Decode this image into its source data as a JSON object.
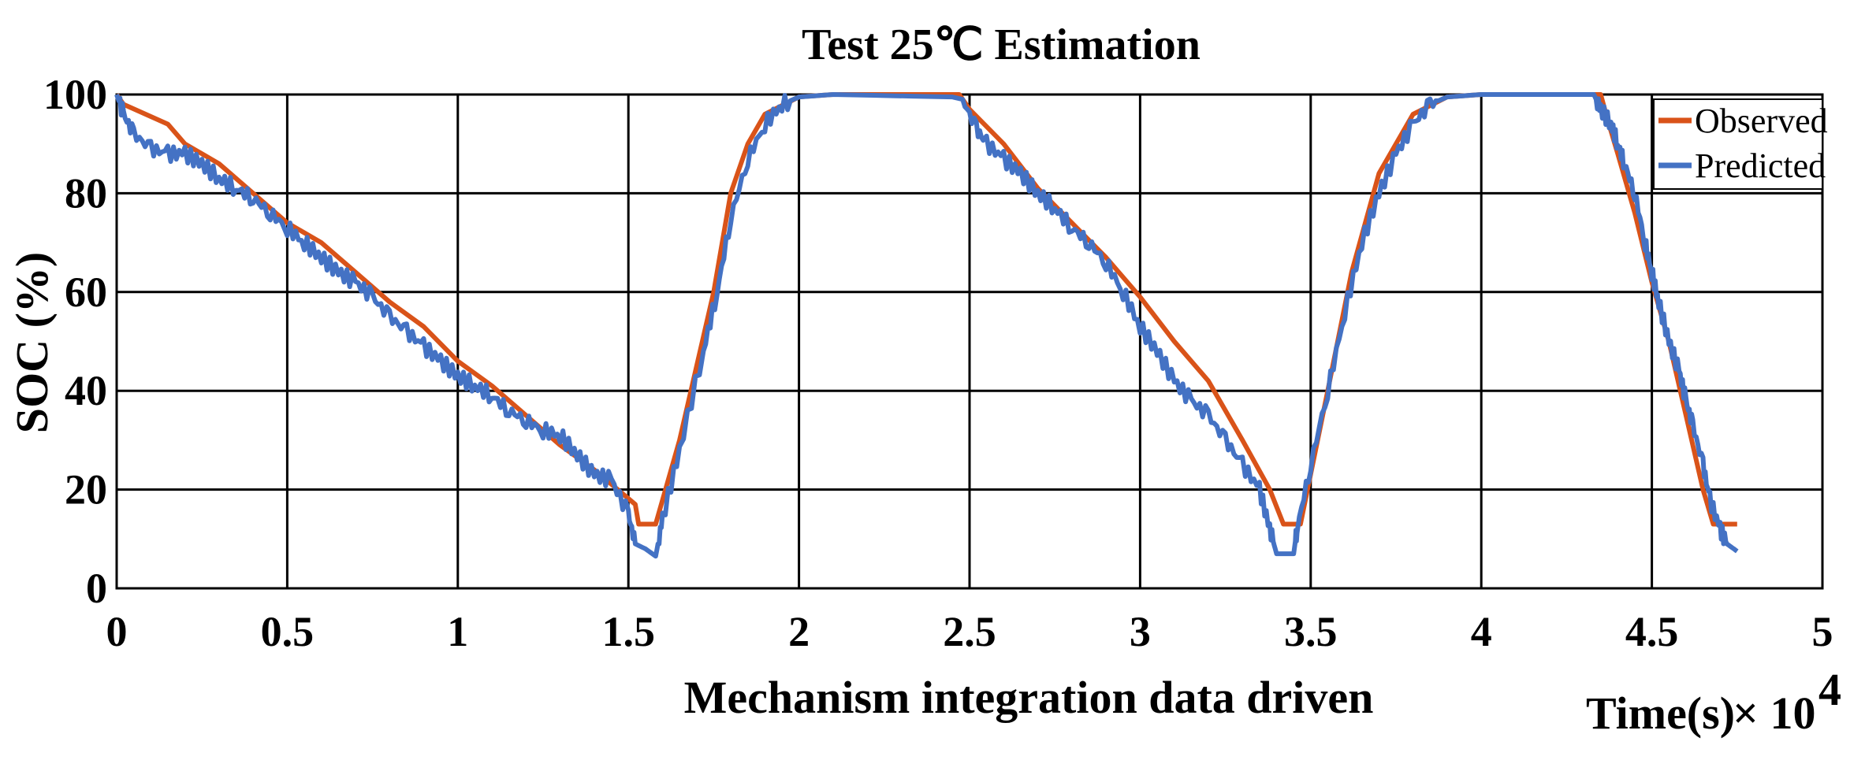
{
  "chart_data": {
    "type": "line",
    "title": "Test  25℃ Estimation",
    "xlabel": "Mechanism integration data driven",
    "xunit_label": "Time(s)",
    "xscale_label": "× 10",
    "xscale_exp": "4",
    "ylabel": "SOC (%)",
    "xlim": [
      0,
      5
    ],
    "ylim": [
      0,
      100
    ],
    "xticks": [
      "0",
      "0.5",
      "1",
      "1.5",
      "2",
      "2.5",
      "3",
      "3.5",
      "4",
      "4.5",
      "5"
    ],
    "yticks": [
      "0",
      "20",
      "40",
      "60",
      "80",
      "100"
    ],
    "grid": true,
    "legend_position": "top-right",
    "series": [
      {
        "name": "Observed",
        "color": "#D95319",
        "points": [
          [
            0,
            100
          ],
          [
            0.02,
            98
          ],
          [
            0.15,
            94
          ],
          [
            0.2,
            90
          ],
          [
            0.3,
            86
          ],
          [
            0.4,
            80
          ],
          [
            0.5,
            74
          ],
          [
            0.6,
            70
          ],
          [
            0.7,
            64
          ],
          [
            0.8,
            58
          ],
          [
            0.9,
            53
          ],
          [
            1.0,
            46
          ],
          [
            1.1,
            41
          ],
          [
            1.2,
            35
          ],
          [
            1.3,
            29
          ],
          [
            1.4,
            24
          ],
          [
            1.52,
            17
          ],
          [
            1.53,
            13
          ],
          [
            1.58,
            13
          ],
          [
            1.65,
            30
          ],
          [
            1.75,
            60
          ],
          [
            1.8,
            80
          ],
          [
            1.85,
            90
          ],
          [
            1.9,
            96
          ],
          [
            2.0,
            99.5
          ],
          [
            2.1,
            100
          ],
          [
            2.47,
            100
          ],
          [
            2.5,
            97
          ],
          [
            2.6,
            90
          ],
          [
            2.7,
            81
          ],
          [
            2.8,
            74
          ],
          [
            2.9,
            67
          ],
          [
            3.0,
            59
          ],
          [
            3.1,
            50
          ],
          [
            3.2,
            42
          ],
          [
            3.3,
            30
          ],
          [
            3.38,
            20
          ],
          [
            3.42,
            13
          ],
          [
            3.47,
            13
          ],
          [
            3.55,
            40
          ],
          [
            3.62,
            64
          ],
          [
            3.7,
            84
          ],
          [
            3.8,
            96
          ],
          [
            3.9,
            99.5
          ],
          [
            4.0,
            100
          ],
          [
            4.35,
            100
          ],
          [
            4.37,
            95
          ],
          [
            4.4,
            88
          ],
          [
            4.45,
            76
          ],
          [
            4.5,
            62
          ],
          [
            4.55,
            50
          ],
          [
            4.6,
            35
          ],
          [
            4.65,
            20
          ],
          [
            4.68,
            13
          ],
          [
            4.75,
            13
          ]
        ]
      },
      {
        "name": "Predicted",
        "color": "#4472C4",
        "points": [
          [
            0,
            100
          ],
          [
            0.02,
            96
          ],
          [
            0.05,
            92
          ],
          [
            0.1,
            89
          ],
          [
            0.15,
            88
          ],
          [
            0.2,
            88
          ],
          [
            0.25,
            86
          ],
          [
            0.3,
            83
          ],
          [
            0.35,
            81
          ],
          [
            0.4,
            79
          ],
          [
            0.45,
            76
          ],
          [
            0.5,
            73
          ],
          [
            0.55,
            70
          ],
          [
            0.6,
            67
          ],
          [
            0.65,
            64
          ],
          [
            0.7,
            62
          ],
          [
            0.75,
            59
          ],
          [
            0.8,
            55
          ],
          [
            0.85,
            52
          ],
          [
            0.9,
            49
          ],
          [
            0.95,
            46
          ],
          [
            1.0,
            43
          ],
          [
            1.05,
            41
          ],
          [
            1.1,
            39
          ],
          [
            1.15,
            36
          ],
          [
            1.2,
            34
          ],
          [
            1.25,
            32
          ],
          [
            1.3,
            31
          ],
          [
            1.35,
            27
          ],
          [
            1.4,
            23
          ],
          [
            1.45,
            22
          ],
          [
            1.5,
            15
          ],
          [
            1.52,
            9
          ],
          [
            1.55,
            8
          ],
          [
            1.58,
            6.5
          ],
          [
            1.6,
            14
          ],
          [
            1.65,
            28
          ],
          [
            1.72,
            48
          ],
          [
            1.76,
            60
          ],
          [
            1.8,
            75
          ],
          [
            1.85,
            87
          ],
          [
            1.9,
            94
          ],
          [
            1.95,
            98
          ],
          [
            2.0,
            99.5
          ],
          [
            2.1,
            100
          ],
          [
            2.45,
            99.5
          ],
          [
            2.48,
            99
          ],
          [
            2.52,
            93
          ],
          [
            2.55,
            90
          ],
          [
            2.6,
            87
          ],
          [
            2.65,
            84
          ],
          [
            2.7,
            80
          ],
          [
            2.75,
            77
          ],
          [
            2.8,
            73
          ],
          [
            2.85,
            70
          ],
          [
            2.9,
            66
          ],
          [
            2.95,
            60
          ],
          [
            3.0,
            53
          ],
          [
            3.05,
            48
          ],
          [
            3.1,
            42
          ],
          [
            3.15,
            38
          ],
          [
            3.2,
            35
          ],
          [
            3.25,
            30
          ],
          [
            3.3,
            25
          ],
          [
            3.35,
            20
          ],
          [
            3.38,
            12
          ],
          [
            3.4,
            7
          ],
          [
            3.45,
            7
          ],
          [
            3.46,
            12
          ],
          [
            3.5,
            25
          ],
          [
            3.55,
            40
          ],
          [
            3.6,
            56
          ],
          [
            3.65,
            70
          ],
          [
            3.7,
            80
          ],
          [
            3.75,
            88
          ],
          [
            3.8,
            94
          ],
          [
            3.85,
            98
          ],
          [
            3.9,
            99.5
          ],
          [
            4.0,
            100
          ],
          [
            4.33,
            100
          ],
          [
            4.35,
            97
          ],
          [
            4.38,
            94
          ],
          [
            4.4,
            90
          ],
          [
            4.42,
            86
          ],
          [
            4.45,
            80
          ],
          [
            4.48,
            70
          ],
          [
            4.5,
            64
          ],
          [
            4.52,
            58
          ],
          [
            4.55,
            50
          ],
          [
            4.58,
            44
          ],
          [
            4.6,
            38
          ],
          [
            4.62,
            33
          ],
          [
            4.65,
            25
          ],
          [
            4.67,
            18
          ],
          [
            4.7,
            12
          ],
          [
            4.72,
            9
          ],
          [
            4.75,
            7.5
          ]
        ]
      }
    ]
  }
}
